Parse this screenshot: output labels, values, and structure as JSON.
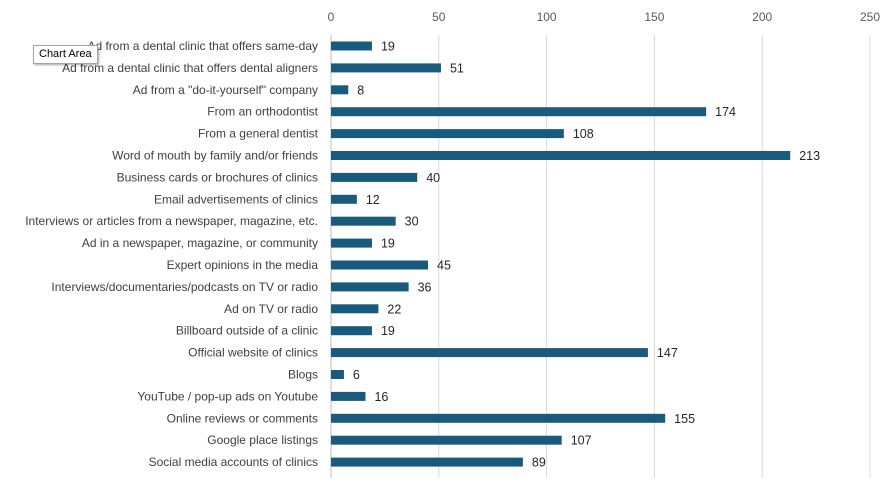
{
  "chart_data": {
    "type": "bar",
    "orientation": "horizontal",
    "title": "",
    "xlabel": "",
    "ylabel": "",
    "xlim": [
      0,
      250
    ],
    "x_ticks": [
      0,
      50,
      100,
      150,
      200,
      250
    ],
    "grid": true,
    "legend": "none",
    "categories": [
      "Ad from a dental clinic that offers same-day",
      "Ad from a dental clinic that offers dental aligners",
      "Ad from a \"do-it-yourself\" company",
      "From an orthodontist",
      "From a general dentist",
      "Word of mouth by family and/or friends",
      "Business cards or brochures of clinics",
      "Email advertisements of clinics",
      "Interviews or articles from a newspaper, magazine, etc.",
      "Ad in a newspaper, magazine, or community",
      "Expert opinions in the media",
      "Interviews/documentaries/podcasts on TV or radio",
      "Ad on TV or radio",
      "Billboard outside of a clinic",
      "Official website of clinics",
      "Blogs",
      "YouTube / pop-up ads on Youtube",
      "Online reviews or comments",
      "Google place listings",
      "Social media accounts of clinics"
    ],
    "values": [
      19,
      51,
      8,
      174,
      108,
      213,
      40,
      12,
      30,
      19,
      45,
      36,
      22,
      19,
      147,
      6,
      16,
      155,
      107,
      89
    ],
    "bar_color": "#1a5b7d",
    "grid_color": "#d9d9d9"
  },
  "tooltip": {
    "label": "Chart Area"
  }
}
